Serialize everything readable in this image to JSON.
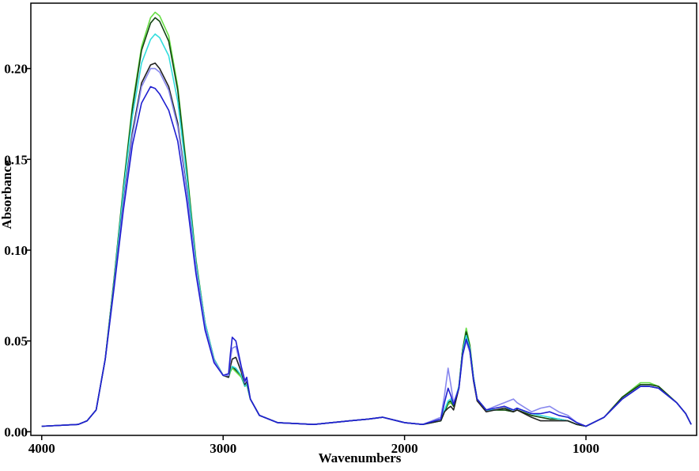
{
  "chart_data": {
    "type": "line",
    "xlabel": "Wavenumbers",
    "ylabel": "Absorbance",
    "xlim": [
      4060,
      390
    ],
    "ylim": [
      -0.002,
      0.236
    ],
    "x_reversed": true,
    "grid": false,
    "x_ticks": [
      {
        "value": 4000,
        "label": "4000"
      },
      {
        "value": 3000,
        "label": "3000"
      },
      {
        "value": 2000,
        "label": "2000"
      },
      {
        "value": 1000,
        "label": "1000"
      }
    ],
    "y_ticks": [
      {
        "value": 0.0,
        "label": "0.00"
      },
      {
        "value": 0.05,
        "label": "0.05"
      },
      {
        "value": 0.1,
        "label": "0.10"
      },
      {
        "value": 0.15,
        "label": "0.15"
      },
      {
        "value": 0.2,
        "label": "0.20"
      }
    ],
    "series": [
      {
        "color": "#66dd44",
        "x": [
          4000,
          3800,
          3750,
          3700,
          3650,
          3600,
          3550,
          3500,
          3450,
          3400,
          3375,
          3350,
          3300,
          3250,
          3200,
          3150,
          3100,
          3050,
          3000,
          2970,
          2960,
          2950,
          2930,
          2900,
          2880,
          2870,
          2860,
          2850,
          2800,
          2700,
          2500,
          2300,
          2200,
          2120,
          2000,
          1900,
          1800,
          1780,
          1760,
          1745,
          1730,
          1700,
          1680,
          1660,
          1640,
          1620,
          1600,
          1550,
          1500,
          1450,
          1400,
          1380,
          1300,
          1250,
          1200,
          1150,
          1100,
          1050,
          1000,
          900,
          800,
          700,
          650,
          600,
          500,
          450,
          420
        ],
        "y": [
          0.003,
          0.004,
          0.006,
          0.012,
          0.04,
          0.085,
          0.135,
          0.18,
          0.212,
          0.228,
          0.231,
          0.229,
          0.218,
          0.19,
          0.145,
          0.095,
          0.06,
          0.04,
          0.031,
          0.03,
          0.033,
          0.035,
          0.033,
          0.03,
          0.025,
          0.026,
          0.022,
          0.018,
          0.009,
          0.005,
          0.004,
          0.006,
          0.007,
          0.008,
          0.005,
          0.004,
          0.006,
          0.011,
          0.015,
          0.016,
          0.014,
          0.025,
          0.045,
          0.057,
          0.048,
          0.03,
          0.018,
          0.012,
          0.012,
          0.012,
          0.011,
          0.012,
          0.009,
          0.008,
          0.007,
          0.007,
          0.006,
          0.004,
          0.003,
          0.008,
          0.019,
          0.027,
          0.027,
          0.025,
          0.016,
          0.01,
          0.004
        ]
      },
      {
        "color": "#114411",
        "x": [
          4000,
          3800,
          3750,
          3700,
          3650,
          3600,
          3550,
          3500,
          3450,
          3400,
          3375,
          3350,
          3300,
          3250,
          3200,
          3150,
          3100,
          3050,
          3000,
          2970,
          2960,
          2950,
          2930,
          2900,
          2880,
          2870,
          2860,
          2850,
          2800,
          2700,
          2500,
          2300,
          2200,
          2120,
          2000,
          1900,
          1800,
          1780,
          1760,
          1745,
          1730,
          1700,
          1680,
          1660,
          1640,
          1620,
          1600,
          1550,
          1500,
          1450,
          1400,
          1380,
          1300,
          1250,
          1200,
          1150,
          1100,
          1050,
          1000,
          900,
          800,
          700,
          650,
          600,
          500,
          450,
          420
        ],
        "y": [
          0.003,
          0.004,
          0.006,
          0.012,
          0.04,
          0.085,
          0.134,
          0.178,
          0.21,
          0.225,
          0.228,
          0.226,
          0.215,
          0.188,
          0.143,
          0.094,
          0.06,
          0.04,
          0.031,
          0.03,
          0.034,
          0.036,
          0.034,
          0.031,
          0.025,
          0.027,
          0.022,
          0.018,
          0.009,
          0.005,
          0.004,
          0.006,
          0.007,
          0.008,
          0.005,
          0.004,
          0.006,
          0.011,
          0.016,
          0.017,
          0.014,
          0.025,
          0.045,
          0.055,
          0.047,
          0.03,
          0.018,
          0.012,
          0.012,
          0.012,
          0.011,
          0.012,
          0.009,
          0.008,
          0.007,
          0.007,
          0.006,
          0.004,
          0.003,
          0.008,
          0.019,
          0.026,
          0.026,
          0.025,
          0.016,
          0.01,
          0.004
        ]
      },
      {
        "color": "#33dddd",
        "x": [
          4000,
          3800,
          3750,
          3700,
          3650,
          3600,
          3550,
          3500,
          3450,
          3400,
          3375,
          3350,
          3300,
          3250,
          3200,
          3150,
          3100,
          3050,
          3000,
          2970,
          2960,
          2950,
          2930,
          2900,
          2880,
          2870,
          2860,
          2850,
          2800,
          2700,
          2500,
          2300,
          2200,
          2120,
          2000,
          1900,
          1800,
          1780,
          1760,
          1745,
          1730,
          1700,
          1680,
          1660,
          1640,
          1620,
          1600,
          1550,
          1500,
          1450,
          1400,
          1380,
          1300,
          1250,
          1200,
          1150,
          1100,
          1050,
          1000,
          900,
          800,
          700,
          650,
          600,
          500,
          450,
          420
        ],
        "y": [
          0.003,
          0.004,
          0.006,
          0.012,
          0.04,
          0.084,
          0.132,
          0.174,
          0.203,
          0.216,
          0.219,
          0.217,
          0.207,
          0.182,
          0.14,
          0.093,
          0.06,
          0.04,
          0.031,
          0.03,
          0.034,
          0.036,
          0.035,
          0.031,
          0.025,
          0.027,
          0.022,
          0.018,
          0.009,
          0.005,
          0.004,
          0.006,
          0.007,
          0.008,
          0.005,
          0.004,
          0.006,
          0.012,
          0.017,
          0.018,
          0.015,
          0.025,
          0.044,
          0.053,
          0.046,
          0.03,
          0.018,
          0.012,
          0.012,
          0.013,
          0.012,
          0.013,
          0.01,
          0.009,
          0.008,
          0.007,
          0.006,
          0.004,
          0.003,
          0.008,
          0.018,
          0.025,
          0.025,
          0.024,
          0.016,
          0.01,
          0.004
        ]
      },
      {
        "color": "#222222",
        "x": [
          4000,
          3800,
          3750,
          3700,
          3650,
          3600,
          3550,
          3500,
          3450,
          3400,
          3375,
          3350,
          3300,
          3250,
          3200,
          3150,
          3100,
          3050,
          3000,
          2970,
          2960,
          2950,
          2930,
          2900,
          2880,
          2870,
          2860,
          2850,
          2800,
          2700,
          2500,
          2300,
          2200,
          2120,
          2000,
          1900,
          1800,
          1780,
          1760,
          1745,
          1730,
          1700,
          1680,
          1660,
          1640,
          1620,
          1600,
          1550,
          1500,
          1450,
          1400,
          1380,
          1300,
          1250,
          1200,
          1150,
          1100,
          1050,
          1000,
          900,
          800,
          700,
          650,
          600,
          500,
          450,
          420
        ],
        "y": [
          0.003,
          0.004,
          0.006,
          0.012,
          0.04,
          0.082,
          0.126,
          0.165,
          0.192,
          0.202,
          0.203,
          0.2,
          0.19,
          0.17,
          0.133,
          0.09,
          0.058,
          0.039,
          0.031,
          0.03,
          0.036,
          0.04,
          0.041,
          0.033,
          0.026,
          0.028,
          0.023,
          0.018,
          0.009,
          0.005,
          0.004,
          0.006,
          0.007,
          0.008,
          0.005,
          0.004,
          0.006,
          0.011,
          0.013,
          0.014,
          0.012,
          0.024,
          0.043,
          0.05,
          0.044,
          0.028,
          0.017,
          0.011,
          0.012,
          0.013,
          0.011,
          0.012,
          0.008,
          0.006,
          0.006,
          0.006,
          0.006,
          0.004,
          0.003,
          0.008,
          0.018,
          0.025,
          0.025,
          0.024,
          0.016,
          0.01,
          0.004
        ]
      },
      {
        "color": "#8888ee",
        "x": [
          4000,
          3800,
          3750,
          3700,
          3650,
          3600,
          3550,
          3500,
          3450,
          3400,
          3375,
          3350,
          3300,
          3250,
          3200,
          3150,
          3100,
          3050,
          3000,
          2970,
          2960,
          2950,
          2930,
          2900,
          2880,
          2870,
          2860,
          2850,
          2800,
          2700,
          2500,
          2300,
          2200,
          2120,
          2000,
          1900,
          1800,
          1780,
          1760,
          1745,
          1730,
          1700,
          1680,
          1660,
          1640,
          1620,
          1600,
          1550,
          1500,
          1450,
          1400,
          1380,
          1300,
          1250,
          1200,
          1150,
          1100,
          1050,
          1000,
          900,
          800,
          700,
          650,
          600,
          500,
          450,
          420
        ],
        "y": [
          0.003,
          0.004,
          0.006,
          0.012,
          0.04,
          0.081,
          0.125,
          0.163,
          0.19,
          0.2,
          0.2,
          0.198,
          0.188,
          0.168,
          0.132,
          0.09,
          0.058,
          0.039,
          0.031,
          0.031,
          0.04,
          0.046,
          0.047,
          0.035,
          0.027,
          0.029,
          0.024,
          0.018,
          0.009,
          0.005,
          0.004,
          0.006,
          0.007,
          0.008,
          0.005,
          0.004,
          0.008,
          0.02,
          0.035,
          0.026,
          0.016,
          0.024,
          0.042,
          0.05,
          0.044,
          0.029,
          0.018,
          0.012,
          0.014,
          0.016,
          0.018,
          0.016,
          0.011,
          0.013,
          0.014,
          0.011,
          0.009,
          0.005,
          0.003,
          0.008,
          0.018,
          0.025,
          0.025,
          0.024,
          0.016,
          0.01,
          0.004
        ]
      },
      {
        "color": "#1f1fd0",
        "x": [
          4000,
          3800,
          3750,
          3700,
          3650,
          3600,
          3550,
          3500,
          3450,
          3400,
          3375,
          3350,
          3300,
          3250,
          3200,
          3150,
          3100,
          3050,
          3000,
          2970,
          2960,
          2950,
          2930,
          2900,
          2880,
          2870,
          2860,
          2850,
          2800,
          2700,
          2500,
          2300,
          2200,
          2120,
          2000,
          1900,
          1800,
          1780,
          1760,
          1745,
          1730,
          1700,
          1680,
          1660,
          1640,
          1620,
          1600,
          1550,
          1500,
          1450,
          1400,
          1380,
          1300,
          1250,
          1200,
          1150,
          1100,
          1050,
          1000,
          900,
          800,
          700,
          650,
          600,
          500,
          450,
          420
        ],
        "y": [
          0.003,
          0.004,
          0.006,
          0.012,
          0.04,
          0.08,
          0.122,
          0.158,
          0.181,
          0.19,
          0.189,
          0.186,
          0.177,
          0.16,
          0.127,
          0.087,
          0.056,
          0.038,
          0.031,
          0.032,
          0.043,
          0.052,
          0.05,
          0.036,
          0.028,
          0.03,
          0.024,
          0.018,
          0.009,
          0.005,
          0.004,
          0.006,
          0.007,
          0.008,
          0.005,
          0.004,
          0.007,
          0.016,
          0.024,
          0.02,
          0.015,
          0.024,
          0.042,
          0.051,
          0.045,
          0.029,
          0.018,
          0.012,
          0.013,
          0.014,
          0.012,
          0.013,
          0.01,
          0.01,
          0.011,
          0.009,
          0.008,
          0.005,
          0.003,
          0.008,
          0.018,
          0.025,
          0.025,
          0.024,
          0.016,
          0.01,
          0.004
        ]
      }
    ]
  }
}
